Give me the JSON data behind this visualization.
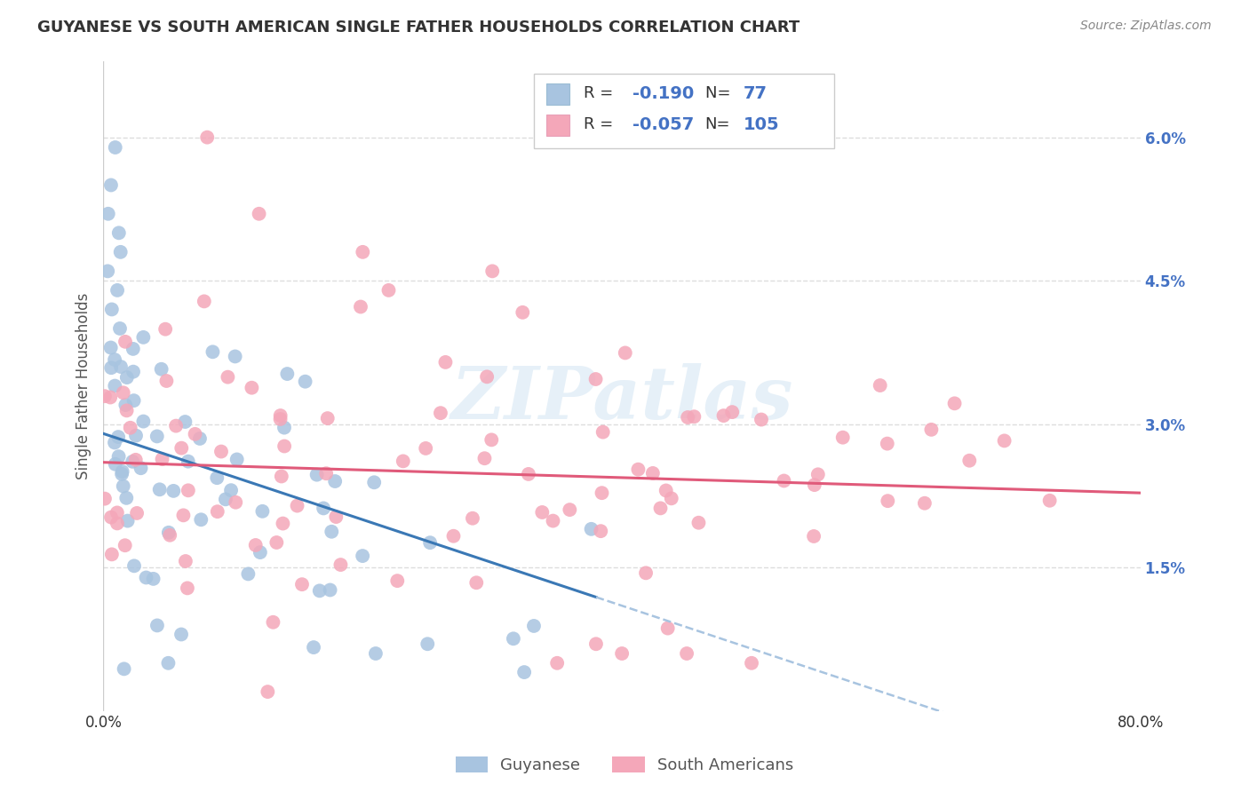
{
  "title": "GUYANESE VS SOUTH AMERICAN SINGLE FATHER HOUSEHOLDS CORRELATION CHART",
  "source": "Source: ZipAtlas.com",
  "ylabel": "Single Father Households",
  "y_ticks": [
    0.0,
    0.015,
    0.03,
    0.045,
    0.06
  ],
  "y_tick_labels": [
    "",
    "1.5%",
    "3.0%",
    "4.5%",
    "6.0%"
  ],
  "x_range": [
    0.0,
    0.8
  ],
  "y_range": [
    0.0,
    0.068
  ],
  "blue_R": -0.19,
  "blue_N": 77,
  "pink_R": -0.057,
  "pink_N": 105,
  "blue_color": "#a8c4e0",
  "pink_color": "#f4a7b9",
  "blue_line_color": "#3a78b5",
  "pink_line_color": "#e05a7a",
  "dashed_line_color": "#a8c4e0",
  "watermark": "ZIPatlas",
  "legend_labels": [
    "Guyanese",
    "South Americans"
  ],
  "background_color": "#ffffff",
  "grid_color": "#dddddd",
  "blue_slope": -0.045,
  "blue_intercept": 0.029,
  "pink_slope": -0.004,
  "pink_intercept": 0.026
}
